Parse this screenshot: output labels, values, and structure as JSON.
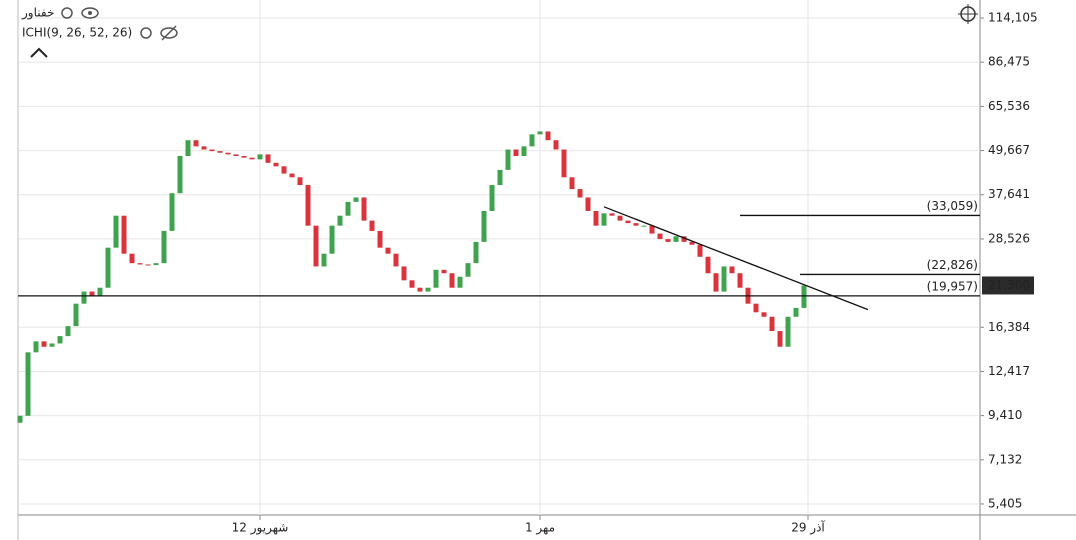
{
  "chart_data": {
    "type": "candlestick",
    "title": "خفناور",
    "indicator": "ICHI(9, 26, 52, 26)",
    "log_scale": true,
    "grid": true,
    "up_color": "#3fa34d",
    "down_color": "#d9343b",
    "xlim": [
      -0.25,
      120
    ],
    "ylim": [
      5043,
      127800
    ],
    "xticks": [
      {
        "value": 30,
        "label": "12 شهریور"
      },
      {
        "value": 65,
        "label": "1 مهر"
      },
      {
        "value": 98.5,
        "label": "29 آذر"
      }
    ],
    "yticks": [
      {
        "value": 114105,
        "label": "114,105"
      },
      {
        "value": 86475,
        "label": "86,475"
      },
      {
        "value": 65536,
        "label": "65,536"
      },
      {
        "value": 49667,
        "label": "49,667"
      },
      {
        "value": 37641,
        "label": "37,641"
      },
      {
        "value": 28526,
        "label": "28,526"
      },
      {
        "value": 16384,
        "label": "16,384"
      },
      {
        "value": 12417,
        "label": "12,417"
      },
      {
        "value": 9410,
        "label": "9,410"
      },
      {
        "value": 7132,
        "label": "7,132"
      },
      {
        "value": 5405,
        "label": "5,405"
      }
    ],
    "open": [
      9000,
      9400,
      14000,
      15000,
      14500,
      14800,
      15500,
      16500,
      19000,
      20500,
      20000,
      21000,
      27000,
      33000,
      26000,
      24500,
      24300,
      24200,
      24500,
      30000,
      38000,
      48000,
      53000,
      51000,
      50000,
      49500,
      49000,
      48500,
      48000,
      47500,
      47000,
      48500,
      46000,
      45000,
      43000,
      42000,
      40000,
      31000,
      24000,
      26000,
      31000,
      33000,
      36000,
      37000,
      32000,
      30000,
      27000,
      26000,
      24000,
      22000,
      21000,
      20500,
      21000,
      23500,
      23000,
      21000,
      22500,
      24500,
      28000,
      34000,
      40000,
      44000,
      50000,
      48000,
      51000,
      55000,
      56000,
      53000,
      50000,
      42000,
      39000,
      37000,
      34000,
      31000,
      33500,
      33000,
      32000,
      31500,
      31000,
      31000,
      29500,
      28500,
      28000,
      29000,
      28000,
      27500,
      25500,
      23000,
      20500,
      24000,
      23000,
      21000,
      19000,
      18000,
      17500,
      16000,
      14500,
      17500,
      18500
    ],
    "close": [
      9400,
      14000,
      15000,
      14500,
      14800,
      15500,
      16500,
      19000,
      20500,
      20000,
      21000,
      27000,
      33000,
      26000,
      24500,
      24300,
      24200,
      24500,
      30000,
      38000,
      48000,
      53000,
      51000,
      50000,
      49500,
      49000,
      48500,
      48000,
      47500,
      47000,
      48500,
      46000,
      45000,
      43000,
      42000,
      40000,
      31000,
      24000,
      26000,
      31000,
      33000,
      36000,
      37000,
      32000,
      30000,
      27000,
      26000,
      24000,
      22000,
      21000,
      20500,
      21000,
      23500,
      23000,
      21000,
      22500,
      24500,
      28000,
      34000,
      40000,
      44000,
      50000,
      48000,
      51000,
      55000,
      56000,
      53000,
      50000,
      42000,
      39000,
      37000,
      34000,
      31000,
      33500,
      33000,
      32000,
      31500,
      31000,
      31000,
      29500,
      28500,
      28000,
      29000,
      28000,
      27500,
      25500,
      23000,
      20500,
      24000,
      23000,
      21000,
      19000,
      18000,
      17500,
      16000,
      14500,
      17500,
      18500,
      21300
    ],
    "levels": [
      {
        "value": 33059,
        "label": "(33,059)",
        "start": 90
      },
      {
        "value": 22826,
        "label": "(22,826)",
        "start": 97.5
      },
      {
        "value": 19957,
        "label": "(19,957)",
        "start": -0.25
      }
    ],
    "trendline": {
      "x": [
        73,
        106
      ],
      "y": [
        34900,
        18300
      ]
    },
    "last_price": {
      "value": 21300,
      "label": "21,300"
    }
  }
}
